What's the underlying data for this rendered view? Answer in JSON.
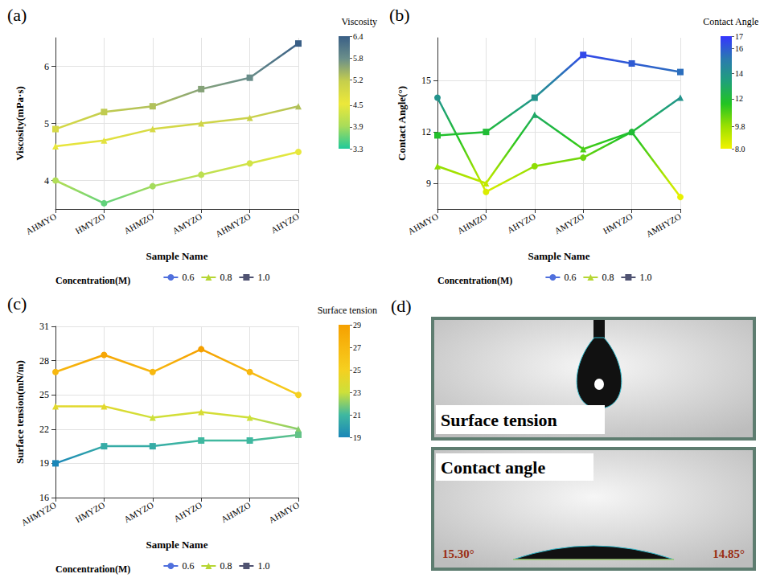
{
  "chart_data": [
    {
      "type": "line",
      "panel": "(a)",
      "xlabel": "Sample Name",
      "ylabel": "Viscosity(mPa·s)",
      "categories": [
        "AHMYO",
        "HMYZO",
        "AHMZO",
        "AMYZO",
        "AHMYZO",
        "AHYZO"
      ],
      "ylim": [
        3.5,
        6.5
      ],
      "yticks": [
        4,
        5,
        6
      ],
      "grid": true,
      "legend": "bottom",
      "legend_title": "Concentration(M)",
      "series": [
        {
          "name": "0.6",
          "marker": "circle",
          "values": [
            4.0,
            3.6,
            3.9,
            4.1,
            4.3,
            4.5
          ]
        },
        {
          "name": "0.8",
          "marker": "triangle",
          "values": [
            4.6,
            4.7,
            4.9,
            5.0,
            5.1,
            5.3
          ]
        },
        {
          "name": "1.0",
          "marker": "rect",
          "values": [
            4.9,
            5.2,
            5.3,
            5.6,
            5.8,
            6.4
          ]
        }
      ],
      "colorbar": {
        "title": "Viscosity",
        "lim": [
          3.3,
          6.4
        ],
        "ticks": [
          3.3,
          3.9,
          4.5,
          5.2,
          5.8,
          6.4
        ],
        "colors": [
          "#20c99a",
          "#a8dc5a",
          "#ece83a",
          "#c6cf4c",
          "#6b8f8a",
          "#3a5f86"
        ]
      }
    },
    {
      "type": "line",
      "panel": "(b)",
      "xlabel": "Sample Name",
      "ylabel": "Contact Angle(°)",
      "categories": [
        "AHMYO",
        "AHMZO",
        "AHYZO",
        "AMYZO",
        "HMYZO",
        "AMHYZO"
      ],
      "ylim": [
        7.5,
        17.5
      ],
      "yticks": [
        9,
        12,
        15
      ],
      "grid": true,
      "legend": "bottom",
      "legend_title": "Concentration(M)",
      "series": [
        {
          "name": "0.6",
          "marker": "circle",
          "values": [
            14.0,
            8.5,
            10.0,
            10.5,
            12.0,
            8.2
          ]
        },
        {
          "name": "0.8",
          "marker": "triangle",
          "values": [
            10.0,
            9.0,
            13.0,
            11.0,
            12.0,
            14.0
          ]
        },
        {
          "name": "1.0",
          "marker": "rect",
          "values": [
            11.8,
            12.0,
            14.0,
            16.5,
            16.0,
            15.5
          ]
        }
      ],
      "colorbar": {
        "title": "Contact Angle",
        "lim": [
          8,
          17
        ],
        "ticks": [
          {
            "value": 8,
            "label": "8.0"
          },
          9.8,
          12,
          14,
          16,
          17
        ],
        "colors": [
          "#f2f200",
          "#9be000",
          "#22c422",
          "#1fa07a",
          "#2a7ab0",
          "#3535ff"
        ]
      }
    },
    {
      "type": "line",
      "panel": "(c)",
      "xlabel": "Sample Name",
      "ylabel": "Surface tension(mN/m)",
      "categories": [
        "AHMYZO",
        "HMYZO",
        "AMYZO",
        "AHYZO",
        "AHMZO",
        "AHMYO"
      ],
      "ylim": [
        16,
        31
      ],
      "yticks": [
        16,
        19,
        22,
        25,
        28,
        31
      ],
      "grid": true,
      "legend": "bottom",
      "legend_title": "Concentration(M)",
      "series": [
        {
          "name": "0.6",
          "marker": "circle",
          "values": [
            27.0,
            28.5,
            27.0,
            29.0,
            27.0,
            25.0
          ]
        },
        {
          "name": "0.8",
          "marker": "triangle",
          "values": [
            24.0,
            24.0,
            23.0,
            23.5,
            23.0,
            22.0
          ]
        },
        {
          "name": "1.0",
          "marker": "rect",
          "values": [
            19.0,
            20.5,
            20.5,
            21.0,
            21.0,
            21.5
          ]
        }
      ],
      "colorbar": {
        "title": "Surface tension",
        "lim": [
          19,
          29
        ],
        "ticks": [
          19,
          21,
          23,
          25,
          27,
          29
        ],
        "colors": [
          "#1a86b8",
          "#3fb8a0",
          "#cde03a",
          "#f5d020",
          "#f7b810",
          "#f5a000"
        ]
      }
    }
  ],
  "panel_d": {
    "panel": "(d)",
    "images": [
      {
        "label": "Surface tension"
      },
      {
        "label": "Contact angle",
        "angles": [
          "15.30°",
          "14.85°"
        ]
      }
    ]
  }
}
